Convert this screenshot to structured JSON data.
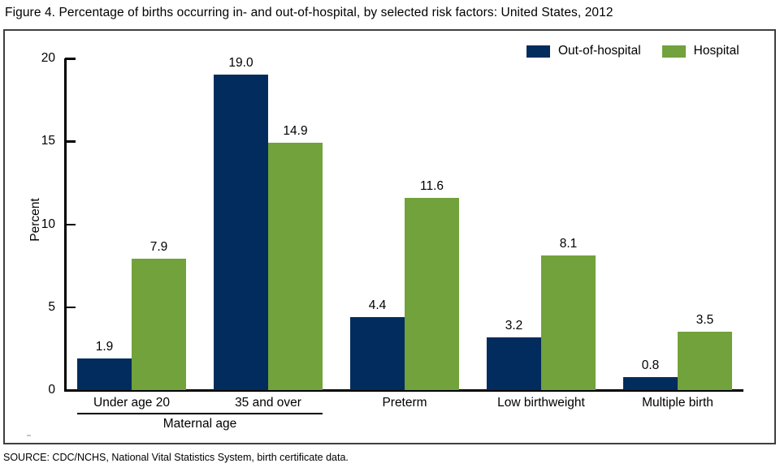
{
  "title": "Figure 4. Percentage of births occurring in- and out-of-hospital, by selected risk factors: United States, 2012",
  "source": "SOURCE: CDC/NCHS, National Vital Statistics System, birth certificate data.",
  "chart_data": {
    "type": "bar",
    "categories": [
      "Under age 20",
      "35 and over",
      "Preterm",
      "Low birthweight",
      "Multiple birth"
    ],
    "series": [
      {
        "name": "Out-of-hospital",
        "color": "#022c5e",
        "values": [
          1.9,
          19.0,
          4.4,
          3.2,
          0.8
        ]
      },
      {
        "name": "Hospital",
        "color": "#71a23b",
        "values": [
          7.9,
          14.9,
          11.6,
          8.1,
          3.5
        ]
      }
    ],
    "title": "Figure 4. Percentage of births occurring in- and out-of-hospital, by selected risk factors: United States, 2012",
    "xlabel": "",
    "ylabel": "Percent",
    "ylim": [
      0,
      20
    ],
    "yticks": [
      0,
      5,
      10,
      15,
      20
    ],
    "value_label_decimals": 1,
    "group_annotation": {
      "label": "Maternal age",
      "from": 0,
      "to": 1
    },
    "legend_position": "top-right",
    "grid": false
  }
}
